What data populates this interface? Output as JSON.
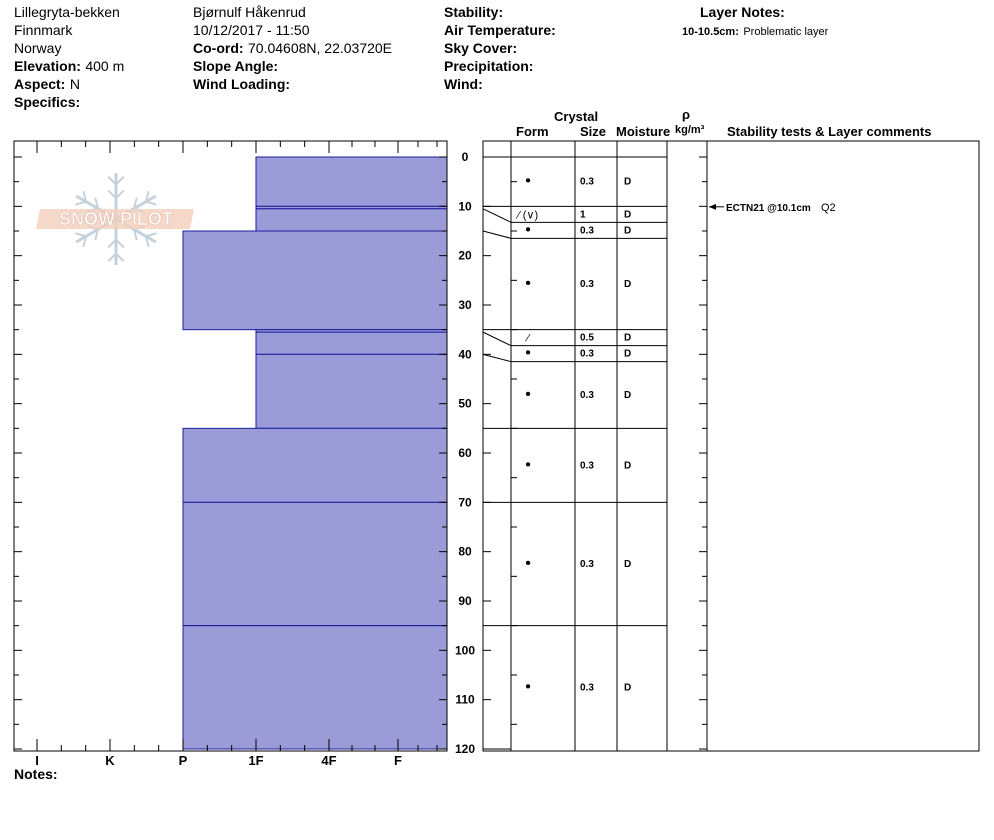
{
  "header": {
    "site": "Lillegryta-bekken",
    "region": "Finnmark",
    "country": "Norway",
    "elevation_label": "Elevation:",
    "elevation_value": "400 m",
    "aspect_label": "Aspect:",
    "aspect_value": "N",
    "specifics_label": "Specifics:",
    "observer": "Bjørnulf Håkenrud",
    "datetime": "10/12/2017 - 11:50",
    "coord_label": "Co-ord:",
    "coord_value": "70.04608N, 22.03720E",
    "slope_label": "Slope Angle:",
    "wind_loading_label": "Wind Loading:",
    "stability_label": "Stability:",
    "air_temp_label": "Air Temperature:",
    "sky_cover_label": "Sky Cover:",
    "precip_label": "Precipitation:",
    "wind_label": "Wind:",
    "layer_notes_title": "Layer Notes:",
    "layer_note_range": "10-10.5cm:",
    "layer_note_text": "Problematic layer"
  },
  "columns": {
    "crystal": "Crystal",
    "form": "Form",
    "size": "Size",
    "moisture": "Moisture",
    "rho": "ρ",
    "density_unit": "kg/m³",
    "stability": "Stability tests & Layer comments"
  },
  "notes_label": "Notes:",
  "watermark": "SNOW PILOT",
  "chart_data": {
    "type": "bar",
    "x_categories": [
      "I",
      "K",
      "P",
      "1F",
      "4F",
      "F"
    ],
    "y_ticks": [
      0,
      10,
      20,
      30,
      40,
      50,
      60,
      70,
      80,
      90,
      100,
      110,
      120
    ],
    "ylim": [
      0,
      120
    ],
    "layers": [
      {
        "top": 0,
        "bottom": 10,
        "hardness": "1F",
        "form": "•",
        "size": "0.3",
        "moisture": "D"
      },
      {
        "top": 10,
        "bottom": 10.5,
        "hardness": "F",
        "form": "⁄ (∨)",
        "size": "1",
        "moisture": "D"
      },
      {
        "top": 10.5,
        "bottom": 15,
        "hardness": "1F",
        "form": "•",
        "size": "0.3",
        "moisture": "D"
      },
      {
        "top": 15,
        "bottom": 35,
        "hardness": "P",
        "form": "•",
        "size": "0.3",
        "moisture": "D"
      },
      {
        "top": 35,
        "bottom": 35.5,
        "hardness": "F",
        "form": "⁄",
        "size": "0.5",
        "moisture": "D"
      },
      {
        "top": 35.5,
        "bottom": 40,
        "hardness": "1F",
        "form": "•",
        "size": "0.3",
        "moisture": "D"
      },
      {
        "top": 40,
        "bottom": 55,
        "hardness": "1F",
        "form": "•",
        "size": "0.3",
        "moisture": "D"
      },
      {
        "top": 55,
        "bottom": 70,
        "hardness": "P",
        "form": "•",
        "size": "0.3",
        "moisture": "D"
      },
      {
        "top": 70,
        "bottom": 95,
        "hardness": "P",
        "form": "•",
        "size": "0.3",
        "moisture": "D"
      },
      {
        "top": 95,
        "bottom": 120,
        "hardness": "P",
        "form": "•",
        "size": "0.3",
        "moisture": "D"
      }
    ],
    "stability_tests": [
      {
        "depth": 10.1,
        "test": "ECTN21 @10.1cm",
        "quality": "Q2"
      }
    ]
  }
}
